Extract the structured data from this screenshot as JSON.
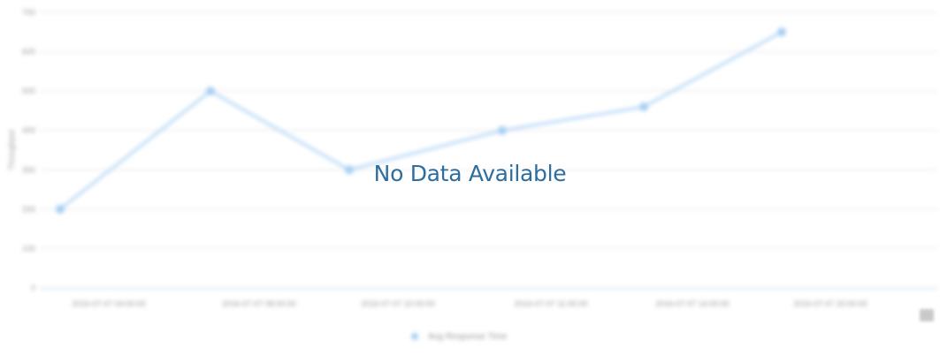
{
  "overlay": {
    "message": "No Data Available"
  },
  "chart_data": {
    "type": "line",
    "title": "",
    "xlabel": "",
    "ylabel": "Throughput",
    "categories": [
      "2016-07-07 04:00:00",
      "2016-07-07 08:00:00",
      "2016-07-07 10:00:00",
      "2016-07-07 11:00:00",
      "2016-07-07 14:00:00",
      "2016-07-07 20:00:00"
    ],
    "y_ticks": [
      0,
      100,
      200,
      300,
      400,
      500,
      600,
      700
    ],
    "ylim": [
      0,
      700
    ],
    "grid": true,
    "legend_position": "bottom",
    "series": [
      {
        "name": "Avg Response Time",
        "color": "#b9d9f7",
        "points": [
          {
            "x": 0,
            "y": 200
          },
          {
            "x": 1,
            "y": 500
          },
          {
            "x": 2,
            "y": 300
          },
          {
            "x": 3,
            "y": 400
          },
          {
            "x": 4,
            "y": 460
          },
          {
            "x": 5,
            "y": 650
          }
        ]
      }
    ]
  },
  "toolbar": {
    "export_icon": "export-menu-icon"
  }
}
